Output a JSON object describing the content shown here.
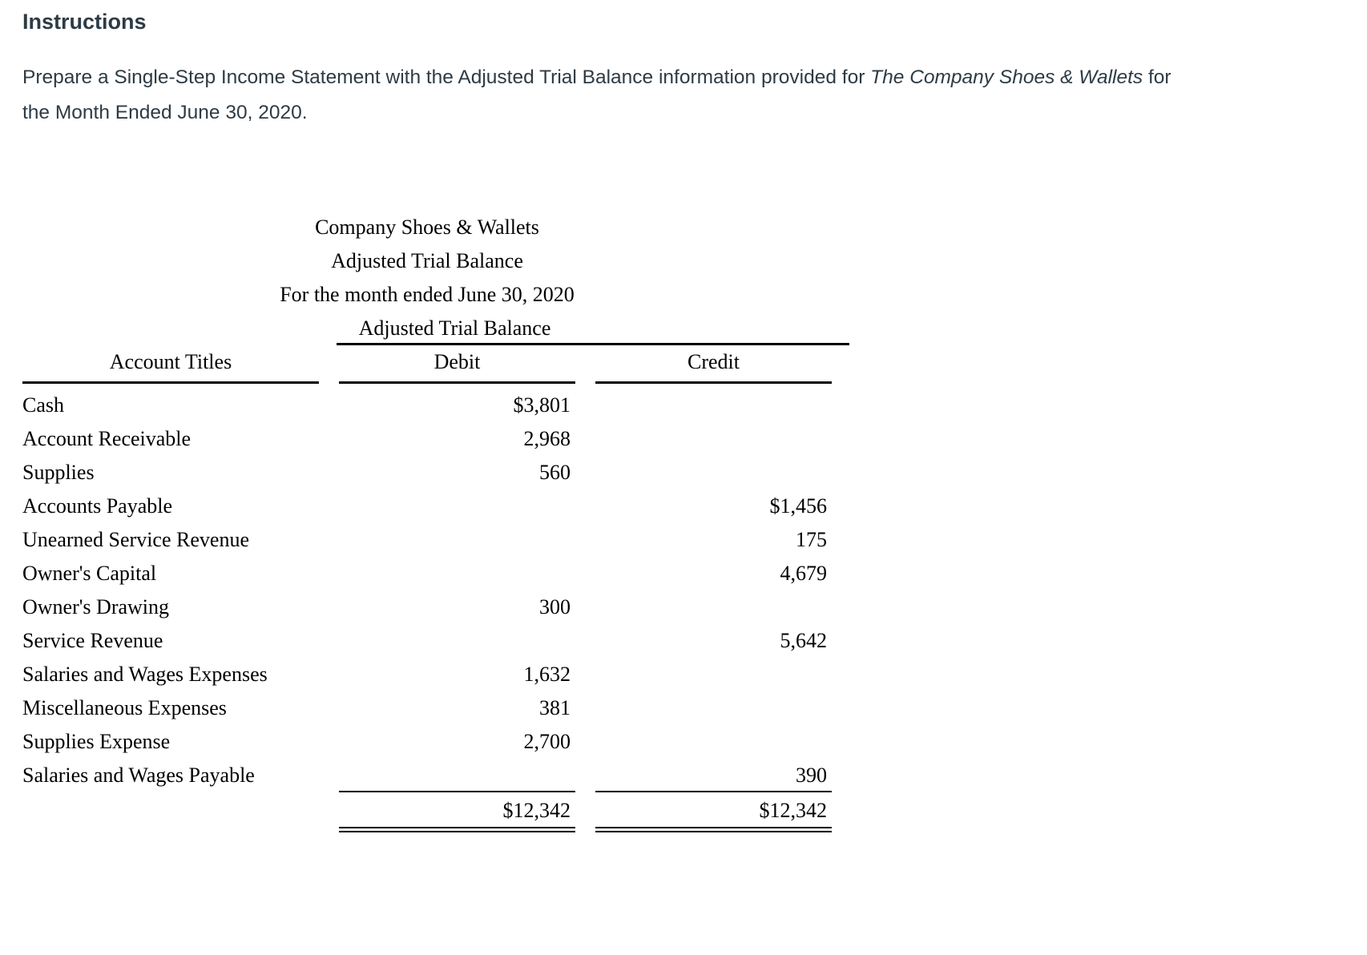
{
  "instructions": {
    "heading": "Instructions",
    "paragraph_parts": [
      {
        "text": "Prepare a Single-Step Income Statement with the Adjusted Trial Balance information provided for ",
        "italic": false
      },
      {
        "text": "The Company Shoes & Wallets",
        "italic": true
      },
      {
        "text": " for the Month Ended June 30, 2020.",
        "italic": false
      }
    ]
  },
  "trial_balance": {
    "company": "Company Shoes & Wallets",
    "statement": "Adjusted Trial Balance",
    "period": "For the month ended June 30, 2020",
    "group_header": "Adjusted Trial Balance",
    "columns": {
      "account": "Account Titles",
      "debit": "Debit",
      "credit": "Credit"
    },
    "rows": [
      {
        "account": "Cash",
        "debit": "$3,801",
        "credit": ""
      },
      {
        "account": "Account Receivable",
        "debit": "2,968",
        "credit": ""
      },
      {
        "account": "Supplies",
        "debit": "560",
        "credit": ""
      },
      {
        "account": "Accounts Payable",
        "debit": "",
        "credit": "$1,456"
      },
      {
        "account": "Unearned Service Revenue",
        "debit": "",
        "credit": "175"
      },
      {
        "account": "Owner's Capital",
        "debit": "",
        "credit": "4,679"
      },
      {
        "account": "Owner's Drawing",
        "debit": "300",
        "credit": ""
      },
      {
        "account": "Service Revenue",
        "debit": "",
        "credit": "5,642"
      },
      {
        "account": "Salaries and Wages Expenses",
        "debit": "1,632",
        "credit": ""
      },
      {
        "account": "Miscellaneous Expenses",
        "debit": "381",
        "credit": ""
      },
      {
        "account": "Supplies Expense",
        "debit": "2,700",
        "credit": ""
      },
      {
        "account": "Salaries and Wages Payable",
        "debit": "",
        "credit": "390"
      }
    ],
    "totals": {
      "debit": "$12,342",
      "credit": "$12,342"
    }
  },
  "colors": {
    "heading_text": "#2d3b45",
    "body_text": "#2d3b45",
    "table_text": "#000000",
    "background": "#ffffff"
  }
}
